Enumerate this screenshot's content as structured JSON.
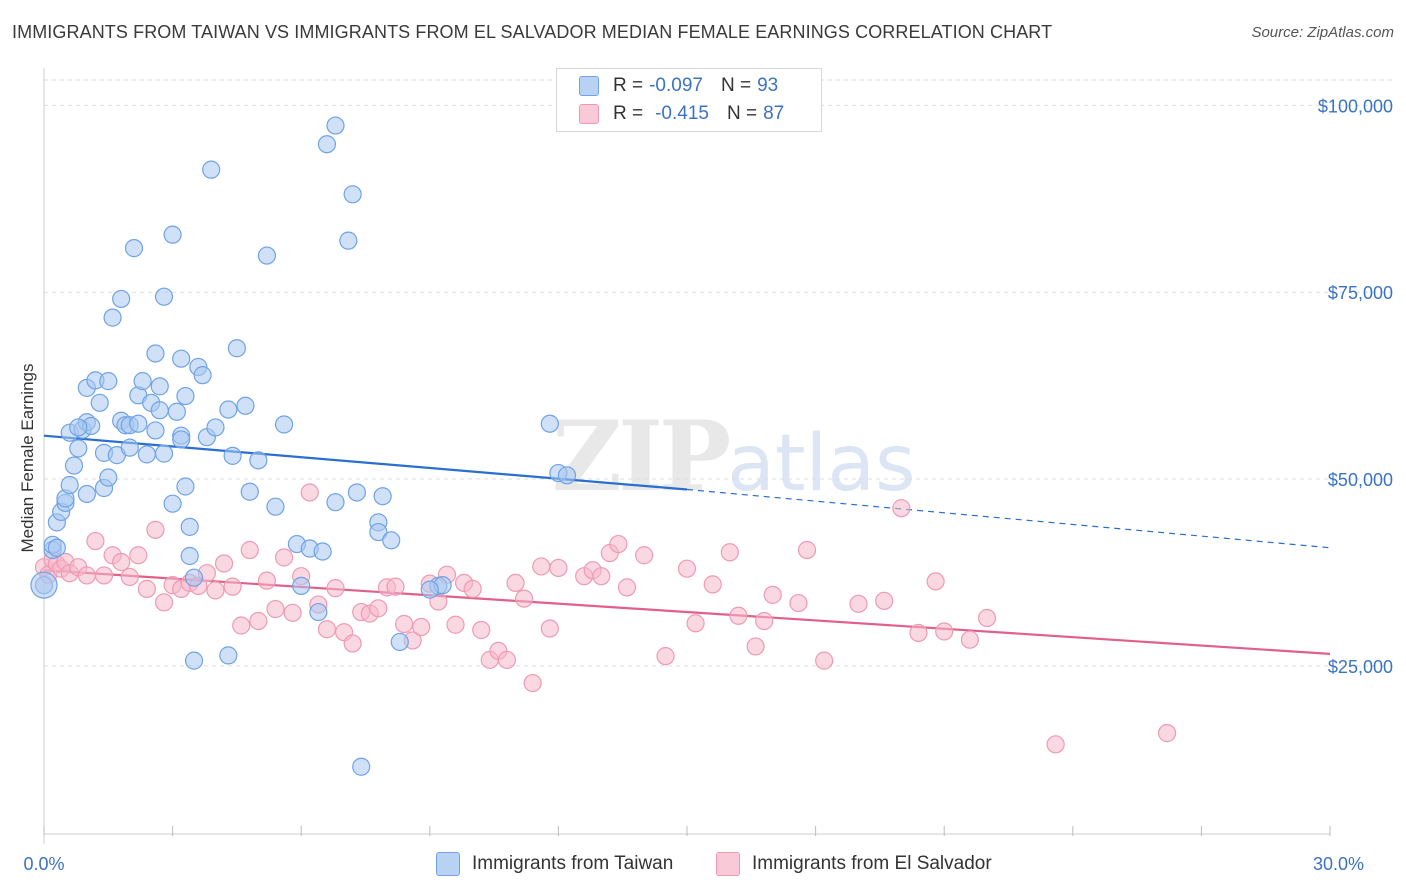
{
  "title": "IMMIGRANTS FROM TAIWAN VS IMMIGRANTS FROM EL SALVADOR MEDIAN FEMALE EARNINGS CORRELATION CHART",
  "source": "Source: ZipAtlas.com",
  "watermark": {
    "zip": "ZIP",
    "atlas": "atlas"
  },
  "legend": {
    "rows": [
      {
        "r_label": "R =",
        "r_value": "-0.097",
        "n_label": "N =",
        "n_value": "93",
        "color": "#a9c8f0"
      },
      {
        "r_label": "R =",
        "r_value": "-0.415",
        "n_label": "N =",
        "n_value": "87",
        "color": "#f5b8cb"
      }
    ]
  },
  "chart_data": {
    "type": "scatter",
    "title": "IMMIGRANTS FROM TAIWAN VS IMMIGRANTS FROM EL SALVADOR MEDIAN FEMALE EARNINGS CORRELATION CHART",
    "xlabel": "",
    "ylabel": "Median Female Earnings",
    "xlim": [
      0,
      30
    ],
    "ylim": [
      2500,
      105000
    ],
    "x_tick_labels": [
      "0.0%",
      "30.0%"
    ],
    "y_ticks": [
      25000,
      50000,
      75000,
      100000
    ],
    "y_tick_labels": [
      "$25,000",
      "$50,000",
      "$75,000",
      "$100,000"
    ],
    "grid": true,
    "legend_position": "top-center",
    "series": [
      {
        "name": "Immigrants from Taiwan",
        "color": "#6fa3e6",
        "fill": "#a9c8f0",
        "line_color": "#2a6fd0",
        "trend": {
          "x0": 0,
          "y0": 55800,
          "x1": 15,
          "y1": 48600,
          "dash_x1": 30,
          "dash_y1": 40800
        },
        "points": [
          [
            0.0,
            35800
          ],
          [
            0.2,
            40500
          ],
          [
            0.2,
            41200
          ],
          [
            0.3,
            44200
          ],
          [
            0.4,
            45600
          ],
          [
            0.5,
            46800
          ],
          [
            0.5,
            47400
          ],
          [
            0.6,
            49200
          ],
          [
            0.6,
            56200
          ],
          [
            0.7,
            51800
          ],
          [
            0.8,
            54100
          ],
          [
            0.9,
            56600
          ],
          [
            1.0,
            48000
          ],
          [
            1.0,
            57600
          ],
          [
            1.1,
            57100
          ],
          [
            1.0,
            62200
          ],
          [
            1.2,
            63200
          ],
          [
            1.3,
            60200
          ],
          [
            1.4,
            48800
          ],
          [
            1.4,
            53500
          ],
          [
            1.5,
            63100
          ],
          [
            1.5,
            50200
          ],
          [
            1.6,
            71600
          ],
          [
            1.7,
            53200
          ],
          [
            1.8,
            57800
          ],
          [
            1.8,
            74100
          ],
          [
            1.9,
            57200
          ],
          [
            2.0,
            57200
          ],
          [
            2.0,
            54200
          ],
          [
            2.1,
            80900
          ],
          [
            2.2,
            61200
          ],
          [
            2.3,
            63100
          ],
          [
            2.4,
            53300
          ],
          [
            2.5,
            60200
          ],
          [
            2.6,
            56500
          ],
          [
            2.6,
            66800
          ],
          [
            2.7,
            59200
          ],
          [
            2.7,
            62400
          ],
          [
            2.8,
            53400
          ],
          [
            2.8,
            74400
          ],
          [
            3.0,
            82700
          ],
          [
            3.0,
            46700
          ],
          [
            3.1,
            59000
          ],
          [
            3.2,
            66100
          ],
          [
            3.2,
            55800
          ],
          [
            3.3,
            61100
          ],
          [
            3.3,
            49000
          ],
          [
            3.4,
            43600
          ],
          [
            3.4,
            39700
          ],
          [
            3.5,
            36800
          ],
          [
            3.5,
            25700
          ],
          [
            3.6,
            65000
          ],
          [
            3.7,
            63900
          ],
          [
            3.8,
            55600
          ],
          [
            3.9,
            91400
          ],
          [
            4.0,
            56900
          ],
          [
            4.3,
            26400
          ],
          [
            4.3,
            59300
          ],
          [
            4.4,
            53100
          ],
          [
            4.5,
            67500
          ],
          [
            4.7,
            59800
          ],
          [
            4.8,
            48300
          ],
          [
            5.0,
            52500
          ],
          [
            5.2,
            79900
          ],
          [
            5.6,
            57300
          ],
          [
            5.9,
            41300
          ],
          [
            6.0,
            35700
          ],
          [
            6.2,
            40700
          ],
          [
            6.4,
            32200
          ],
          [
            6.5,
            40300
          ],
          [
            6.6,
            94800
          ],
          [
            6.8,
            97300
          ],
          [
            6.8,
            46900
          ],
          [
            7.1,
            81900
          ],
          [
            7.2,
            88100
          ],
          [
            7.3,
            48200
          ],
          [
            7.8,
            44200
          ],
          [
            7.8,
            42900
          ],
          [
            7.9,
            47700
          ],
          [
            8.1,
            41800
          ],
          [
            8.3,
            28200
          ],
          [
            9.2,
            35700
          ],
          [
            9.3,
            35800
          ],
          [
            11.8,
            57400
          ],
          [
            12.0,
            50800
          ],
          [
            12.2,
            50500
          ],
          [
            7.4,
            11500
          ],
          [
            9.0,
            35200
          ],
          [
            0.3,
            40800
          ],
          [
            0.8,
            56900
          ],
          [
            2.2,
            57400
          ],
          [
            3.2,
            55300
          ],
          [
            5.4,
            46300
          ]
        ]
      },
      {
        "name": "Immigrants from El Salvador",
        "color": "#ee9ab5",
        "fill": "#f5b8cb",
        "line_color": "#e0608a",
        "trend": {
          "x0": 0,
          "y0": 37800,
          "x1": 30,
          "y1": 26600
        },
        "points": [
          [
            0.0,
            38200
          ],
          [
            0.1,
            37200
          ],
          [
            0.2,
            39200
          ],
          [
            0.3,
            38600
          ],
          [
            0.4,
            38000
          ],
          [
            0.5,
            38900
          ],
          [
            0.6,
            37400
          ],
          [
            0.8,
            38200
          ],
          [
            1.0,
            37100
          ],
          [
            1.2,
            41700
          ],
          [
            1.4,
            37100
          ],
          [
            1.6,
            39800
          ],
          [
            1.8,
            38900
          ],
          [
            2.0,
            36900
          ],
          [
            2.2,
            39800
          ],
          [
            2.4,
            35300
          ],
          [
            2.6,
            43200
          ],
          [
            2.8,
            33500
          ],
          [
            3.0,
            35800
          ],
          [
            3.2,
            35300
          ],
          [
            3.4,
            36100
          ],
          [
            3.6,
            35700
          ],
          [
            3.8,
            37400
          ],
          [
            4.0,
            35100
          ],
          [
            4.2,
            38700
          ],
          [
            4.4,
            35600
          ],
          [
            4.6,
            30400
          ],
          [
            4.8,
            40500
          ],
          [
            5.0,
            31000
          ],
          [
            5.2,
            36400
          ],
          [
            5.4,
            32600
          ],
          [
            5.6,
            39500
          ],
          [
            5.8,
            32100
          ],
          [
            6.0,
            37000
          ],
          [
            6.2,
            48200
          ],
          [
            6.4,
            33200
          ],
          [
            6.6,
            29900
          ],
          [
            6.8,
            35400
          ],
          [
            7.0,
            29500
          ],
          [
            7.2,
            28000
          ],
          [
            7.4,
            32200
          ],
          [
            7.6,
            32000
          ],
          [
            7.8,
            32700
          ],
          [
            8.0,
            35500
          ],
          [
            8.2,
            35600
          ],
          [
            8.4,
            30600
          ],
          [
            8.6,
            28400
          ],
          [
            8.8,
            30200
          ],
          [
            9.0,
            36000
          ],
          [
            9.2,
            33600
          ],
          [
            9.4,
            37200
          ],
          [
            9.6,
            30500
          ],
          [
            9.8,
            36100
          ],
          [
            10.0,
            35300
          ],
          [
            10.2,
            29800
          ],
          [
            10.4,
            25800
          ],
          [
            10.6,
            27000
          ],
          [
            10.8,
            25800
          ],
          [
            11.0,
            36100
          ],
          [
            11.2,
            34000
          ],
          [
            11.4,
            22700
          ],
          [
            11.6,
            38300
          ],
          [
            11.8,
            30000
          ],
          [
            12.0,
            38100
          ],
          [
            12.6,
            37000
          ],
          [
            12.8,
            37800
          ],
          [
            13.0,
            37000
          ],
          [
            13.2,
            40100
          ],
          [
            13.4,
            41300
          ],
          [
            13.6,
            35500
          ],
          [
            14.0,
            39800
          ],
          [
            14.5,
            26300
          ],
          [
            15.0,
            38000
          ],
          [
            15.2,
            30700
          ],
          [
            15.6,
            35900
          ],
          [
            16.0,
            40200
          ],
          [
            16.2,
            31700
          ],
          [
            16.6,
            27600
          ],
          [
            17.0,
            34500
          ],
          [
            17.6,
            33400
          ],
          [
            17.8,
            40500
          ],
          [
            18.2,
            25700
          ],
          [
            19.0,
            33300
          ],
          [
            19.6,
            33700
          ],
          [
            20.0,
            46100
          ],
          [
            20.4,
            29400
          ],
          [
            20.8,
            36300
          ]
        ]
      }
    ],
    "extra_points_el_salvador": [
      [
        21.0,
        29600
      ],
      [
        21.6,
        28500
      ],
      [
        22.0,
        31400
      ],
      [
        23.6,
        14500
      ],
      [
        26.2,
        16000
      ],
      [
        16.8,
        31000
      ]
    ]
  },
  "bottom_legend": [
    {
      "label": "Immigrants from Taiwan",
      "color": "#a9c8f0",
      "border": "#6fa3e6"
    },
    {
      "label": "Immigrants from El Salvador",
      "color": "#f5b8cb",
      "border": "#ee9ab5"
    }
  ]
}
